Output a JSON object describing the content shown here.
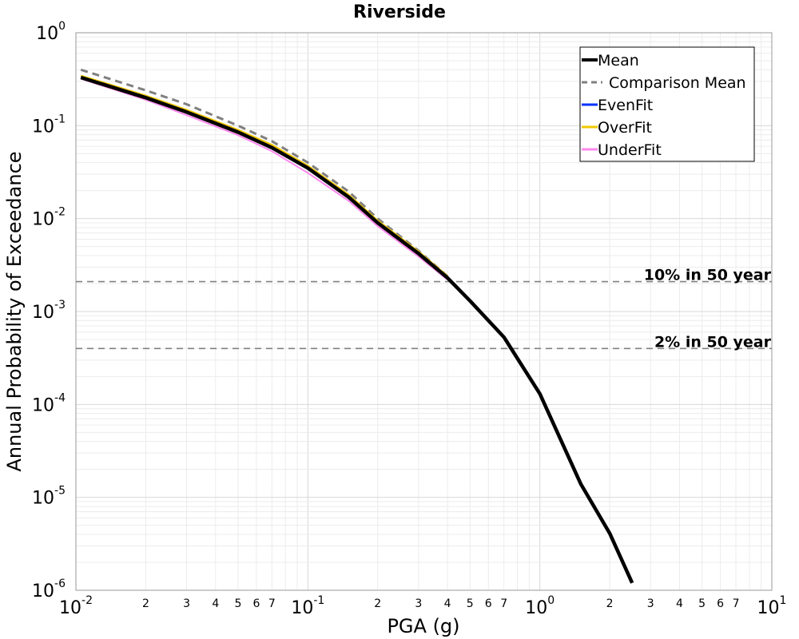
{
  "chart_data": {
    "type": "line",
    "title": "Riverside",
    "xlabel": "PGA (g)",
    "ylabel": "Annual Probability of Exceedance",
    "x_scale": "log",
    "y_scale": "log",
    "xlim": [
      0.01,
      10
    ],
    "ylim": [
      1e-06,
      1
    ],
    "grid": true,
    "legend_position": "top-right",
    "x_major_ticks": [
      {
        "base": "10",
        "exp": "-2",
        "value": 0.01
      },
      {
        "base": "10",
        "exp": "-1",
        "value": 0.1
      },
      {
        "base": "10",
        "exp": "0",
        "value": 1
      },
      {
        "base": "10",
        "exp": "1",
        "value": 10
      }
    ],
    "y_major_ticks": [
      {
        "base": "10",
        "exp": "0",
        "value": 1
      },
      {
        "base": "10",
        "exp": "-1",
        "value": 0.1
      },
      {
        "base": "10",
        "exp": "-2",
        "value": 0.01
      },
      {
        "base": "10",
        "exp": "-3",
        "value": 0.001
      },
      {
        "base": "10",
        "exp": "-4",
        "value": 0.0001
      },
      {
        "base": "10",
        "exp": "-5",
        "value": 1e-05
      },
      {
        "base": "10",
        "exp": "-6",
        "value": 1e-06
      }
    ],
    "x_minor_tick_labels": [
      "2",
      "3",
      "4",
      "5",
      "6",
      "7"
    ],
    "reference_lines": [
      {
        "label": "10% in 50 year",
        "y": 0.0021,
        "color": "#808080"
      },
      {
        "label": "2% in 50 year",
        "y": 0.0004,
        "color": "#808080"
      }
    ],
    "series": [
      {
        "name": "Mean",
        "color": "#000000",
        "style": "solid",
        "x": [
          0.0105,
          0.02,
          0.03,
          0.05,
          0.07,
          0.1,
          0.15,
          0.2,
          0.3,
          0.4,
          0.5,
          0.7,
          1.0,
          1.5,
          2.0,
          2.5
        ],
        "y": [
          0.33,
          0.2,
          0.14,
          0.085,
          0.058,
          0.035,
          0.017,
          0.009,
          0.0042,
          0.0023,
          0.0013,
          0.00053,
          0.00013,
          1.4e-05,
          4.1e-06,
          1.2e-06
        ]
      },
      {
        "name": "Comparison Mean",
        "color": "#808080",
        "style": "dashed",
        "x": [
          0.0105,
          0.02,
          0.03,
          0.05,
          0.07,
          0.1,
          0.15,
          0.2,
          0.3,
          0.4
        ],
        "y": [
          0.4,
          0.24,
          0.17,
          0.1,
          0.068,
          0.04,
          0.0195,
          0.01,
          0.0045,
          0.0024
        ]
      },
      {
        "name": "EvenFit",
        "color": "#0033ff",
        "style": "solid",
        "x": [
          0.0105,
          0.02,
          0.03,
          0.05,
          0.07,
          0.1,
          0.15,
          0.2,
          0.3,
          0.4
        ],
        "y": [
          0.33,
          0.2,
          0.14,
          0.085,
          0.058,
          0.035,
          0.017,
          0.009,
          0.0042,
          0.0023
        ]
      },
      {
        "name": "OverFit",
        "color": "#f0c800",
        "style": "solid",
        "x": [
          0.0105,
          0.02,
          0.03,
          0.05,
          0.07,
          0.1,
          0.15,
          0.2,
          0.3,
          0.4
        ],
        "y": [
          0.345,
          0.21,
          0.148,
          0.09,
          0.062,
          0.037,
          0.018,
          0.0095,
          0.0044,
          0.0024
        ]
      },
      {
        "name": "UnderFit",
        "color": "#ff88ee",
        "style": "solid",
        "x": [
          0.0105,
          0.02,
          0.03,
          0.05,
          0.07,
          0.1,
          0.15,
          0.2,
          0.3,
          0.4
        ],
        "y": [
          0.32,
          0.19,
          0.13,
          0.079,
          0.053,
          0.031,
          0.0155,
          0.0083,
          0.0039,
          0.0022
        ]
      }
    ]
  }
}
